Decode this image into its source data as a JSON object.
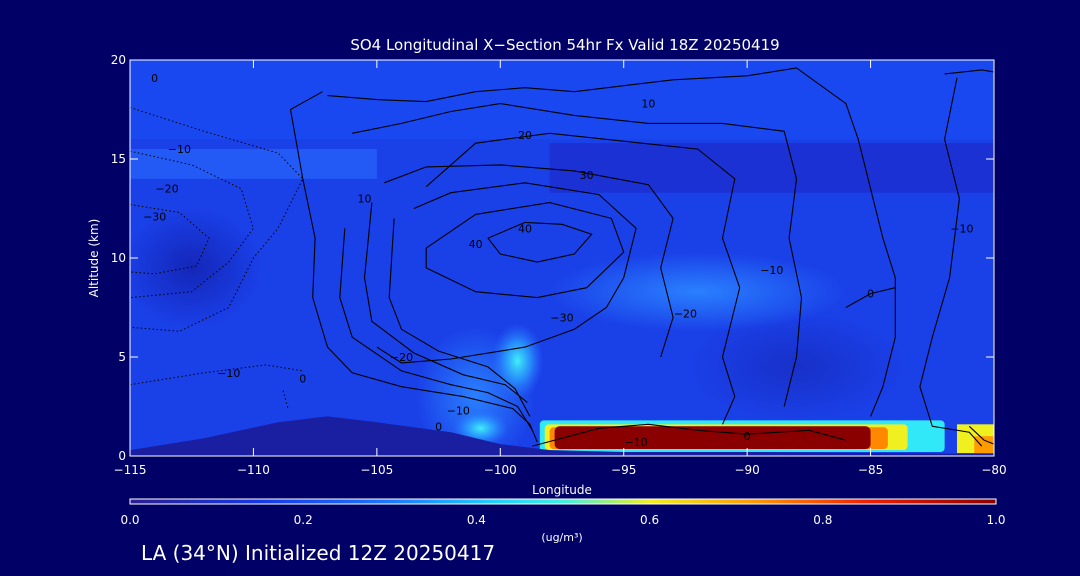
{
  "chart_data": {
    "type": "heatmap",
    "title": "SO4 Longitudinal X−Section 54hr  Fx Valid 18Z 20250419",
    "xlabel": "Longitude",
    "ylabel": "Altitude (km)",
    "xlim": [
      -115,
      -80
    ],
    "ylim": [
      0,
      20
    ],
    "x_ticks": [
      -115,
      -110,
      -105,
      -100,
      -95,
      -90,
      -85,
      -80
    ],
    "x_tick_labels": [
      "−115",
      "−110",
      "−105",
      "−100",
      "−95",
      "−90",
      "−85",
      "−80"
    ],
    "y_ticks": [
      0,
      5,
      10,
      15,
      20
    ],
    "y_tick_labels": [
      "0",
      "5",
      "10",
      "15",
      "20"
    ],
    "colorbar": {
      "min": 0.0,
      "max": 1.0,
      "ticks": [
        0.0,
        0.2,
        0.4,
        0.6,
        0.8,
        1.0
      ],
      "tick_labels": [
        "0.0",
        "0.2",
        "0.4",
        "0.6",
        "0.8",
        "1.0"
      ],
      "unit": "(ug/m³)",
      "colors": [
        "#1010b0",
        "#1a3cf0",
        "#2a8cff",
        "#30e8f8",
        "#f0f020",
        "#ff8800",
        "#e81000",
        "#8a0000"
      ]
    },
    "concentration_features": [
      {
        "lon_min": -98,
        "lon_max": -85,
        "alt_min": 0.3,
        "alt_max": 1.5,
        "value": 1.0
      },
      {
        "lon_min": -81,
        "lon_max": -80,
        "alt_min": 0.2,
        "alt_max": 1.0,
        "value": 0.6
      },
      {
        "lon_min": -101,
        "lon_max": -98,
        "alt_min": 1,
        "alt_max": 6,
        "value": 0.35
      },
      {
        "lon_min": -102,
        "lon_max": -98,
        "alt_min": 0,
        "alt_max": 1,
        "value": 0.45
      },
      {
        "lon_min": -84,
        "lon_max": -80,
        "alt_min": 0.5,
        "alt_max": 1.5,
        "value": 0.5
      }
    ],
    "terrain": [
      [
        -115,
        0.3
      ],
      [
        -112,
        0.9
      ],
      [
        -109,
        1.7
      ],
      [
        -107,
        2.0
      ],
      [
        -105,
        1.7
      ],
      [
        -102,
        1.2
      ],
      [
        -100,
        0.6
      ],
      [
        -98,
        0.3
      ],
      [
        -95,
        0.2
      ],
      [
        -90,
        0.2
      ],
      [
        -85,
        0.15
      ],
      [
        -80,
        0.1
      ]
    ],
    "contour_labels": [
      {
        "text": "0",
        "lon": -114,
        "alt": 18.9
      },
      {
        "text": "−10",
        "lon": -113,
        "alt": 15.3
      },
      {
        "text": "−20",
        "lon": -113.5,
        "alt": 13.3
      },
      {
        "text": "−30",
        "lon": -114,
        "alt": 11.9
      },
      {
        "text": "−10",
        "lon": -111,
        "alt": 4.0
      },
      {
        "text": "0",
        "lon": -108,
        "alt": 3.7
      },
      {
        "text": "10",
        "lon": -105.5,
        "alt": 12.8
      },
      {
        "text": "20",
        "lon": -99,
        "alt": 16.0
      },
      {
        "text": "30",
        "lon": -96.5,
        "alt": 14.0
      },
      {
        "text": "40",
        "lon": -101,
        "alt": 10.5
      },
      {
        "text": "40",
        "lon": -99,
        "alt": 11.3
      },
      {
        "text": "10",
        "lon": -94,
        "alt": 17.6
      },
      {
        "text": "−30",
        "lon": -97.5,
        "alt": 6.8
      },
      {
        "text": "−20",
        "lon": -104,
        "alt": 4.8
      },
      {
        "text": "−10",
        "lon": -101.7,
        "alt": 2.1
      },
      {
        "text": "0",
        "lon": -102.5,
        "alt": 1.3
      },
      {
        "text": "−10",
        "lon": -94.5,
        "alt": 0.5
      },
      {
        "text": "0",
        "lon": -90,
        "alt": 0.8
      },
      {
        "text": "−10",
        "lon": -81.3,
        "alt": 11.3
      },
      {
        "text": "−10",
        "lon": -89,
        "alt": 9.2
      },
      {
        "text": "0",
        "lon": -85,
        "alt": 8.0
      },
      {
        "text": "−20",
        "lon": -92.5,
        "alt": 7.0
      }
    ]
  },
  "footer": {
    "init_text": "LA (34°N) Initialized 12Z 20250417"
  }
}
